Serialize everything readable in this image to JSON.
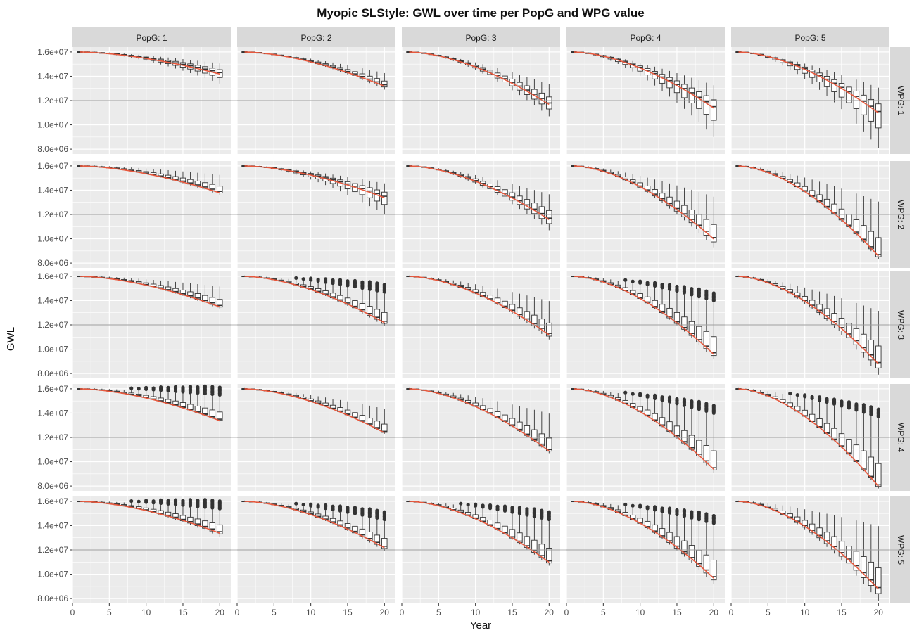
{
  "chart_data": {
    "type": "boxplot-facets",
    "title": "Myopic SLStyle: GWL over time per PopG and WPG value",
    "xlabel": "Year",
    "ylabel": "GWL",
    "x_ticks": [
      0,
      5,
      10,
      15,
      20
    ],
    "x_tick_labels": [
      "0",
      "5",
      "10",
      "15",
      "20"
    ],
    "y_ticks": [
      8000000,
      10000000,
      12000000,
      14000000,
      16000000
    ],
    "y_tick_labels": [
      "8.0e+06",
      "1.0e+07",
      "1.2e+07",
      "1.4e+07",
      "1.6e+07"
    ],
    "xlim": [
      0,
      21.5
    ],
    "ylim": [
      7600000,
      16400000
    ],
    "reference_line": 12000000,
    "col_facet_labels": [
      "PopG: 1",
      "PopG: 2",
      "PopG: 3",
      "PopG: 4",
      "PopG: 5"
    ],
    "row_facet_labels": [
      "WPG: 1",
      "WPG: 2",
      "WPG: 3",
      "WPG: 4",
      "WPG: 5"
    ],
    "years": [
      1,
      20
    ],
    "final_median_by_row_col": [
      [
        14300000,
        13300000,
        11800000,
        11500000,
        11100000
      ],
      [
        13900000,
        13500000,
        11700000,
        10100000,
        8700000
      ],
      [
        13600000,
        12300000,
        11300000,
        9700000,
        8900000
      ],
      [
        13500000,
        12500000,
        11000000,
        9500000,
        8100000
      ],
      [
        13500000,
        12300000,
        11100000,
        9800000,
        8900000
      ]
    ],
    "final_min_by_row_col": [
      [
        13400000,
        12900000,
        10700000,
        9000000,
        8100000
      ],
      [
        13600000,
        12000000,
        10700000,
        9300000,
        8300000
      ],
      [
        13300000,
        11900000,
        10800000,
        9200000,
        7900000
      ],
      [
        13300000,
        12300000,
        10700000,
        9100000,
        7800000
      ],
      [
        13100000,
        11900000,
        10700000,
        9200000,
        7800000
      ]
    ],
    "final_max_by_row_col": [
      [
        15000000,
        14200000,
        13300000,
        13200000,
        13000000
      ],
      [
        15200000,
        14500000,
        13600000,
        13400000,
        13000000
      ],
      [
        15100000,
        14500000,
        13900000,
        13800000,
        13100000
      ],
      [
        15300000,
        14300000,
        13900000,
        13800000,
        13500000
      ],
      [
        15200000,
        14300000,
        14300000,
        14000000,
        13900000
      ]
    ],
    "outliers_by_row_col": [
      [
        false,
        false,
        false,
        false,
        false
      ],
      [
        false,
        false,
        false,
        false,
        false
      ],
      [
        false,
        true,
        false,
        true,
        false
      ],
      [
        true,
        false,
        false,
        true,
        true
      ],
      [
        true,
        true,
        true,
        true,
        false
      ]
    ],
    "colors": {
      "panel_bg": "#ebebeb",
      "grid": "#ffffff",
      "strip_bg": "#d9d9d9",
      "trend_line": "#e8583d",
      "box": "#333333",
      "reference_line": "#9a9a9a"
    }
  }
}
